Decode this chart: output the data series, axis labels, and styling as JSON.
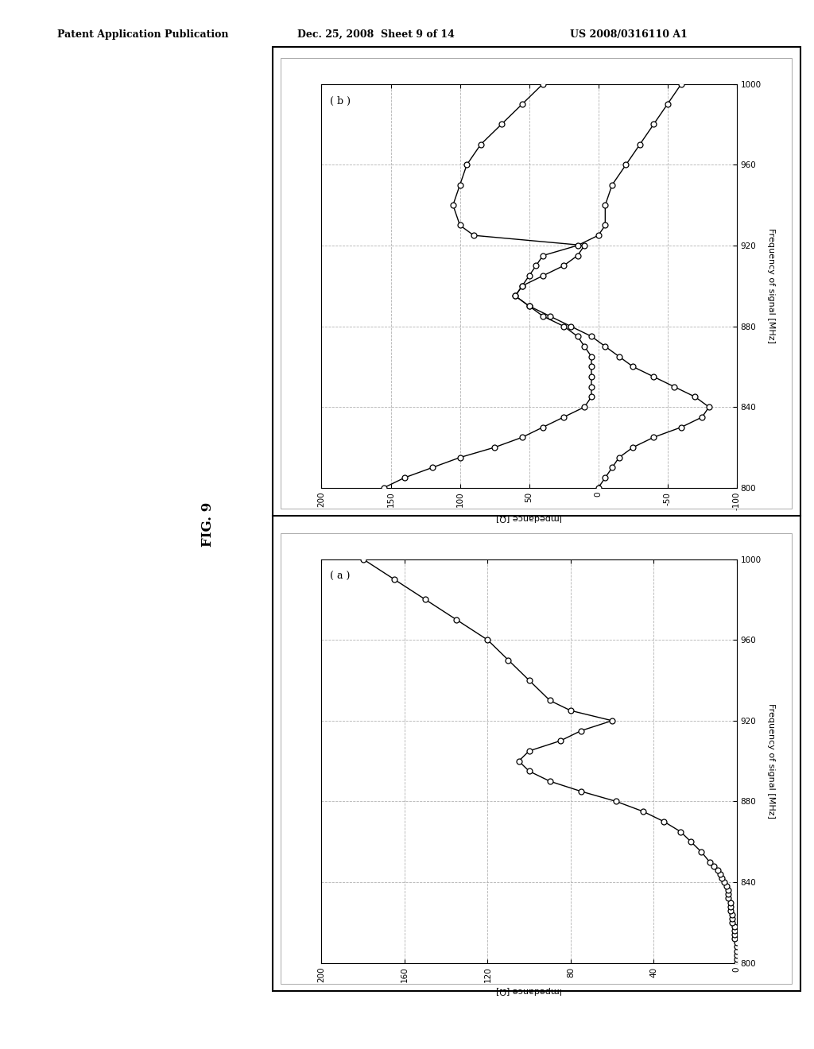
{
  "header_left": "Patent Application Publication",
  "header_mid": "Dec. 25, 2008  Sheet 9 of 14",
  "header_right": "US 2008/0316110 A1",
  "fig_label": "FIG. 9",
  "plot_a_label": "( a )",
  "plot_b_label": "( b )",
  "freq_ticks": [
    800,
    840,
    880,
    920,
    960,
    1000
  ],
  "freq_tick_labels": [
    "800",
    "840",
    "880",
    "920",
    "960",
    "1000"
  ],
  "plot_a_xlim": [
    0,
    200
  ],
  "plot_a_xticks": [
    0,
    40,
    80,
    120,
    160,
    200
  ],
  "plot_a_xtick_labels": [
    "0",
    "40",
    "80",
    "120",
    "160",
    "200"
  ],
  "plot_b_xlim": [
    -100,
    200
  ],
  "plot_b_xticks": [
    -100,
    -50,
    0,
    50,
    100,
    150,
    200
  ],
  "plot_b_xtick_labels": [
    "-100",
    "-50",
    "0",
    "50",
    "100",
    "150",
    "200"
  ],
  "plot_a_freq": [
    800,
    802,
    804,
    806,
    808,
    810,
    812,
    814,
    816,
    818,
    820,
    822,
    824,
    826,
    828,
    830,
    832,
    834,
    836,
    838,
    840,
    842,
    844,
    846,
    848,
    850,
    855,
    860,
    865,
    870,
    875,
    880,
    885,
    890,
    895,
    900,
    905,
    910,
    915,
    920,
    925,
    930,
    940,
    950,
    960,
    970,
    980,
    990,
    1000
  ],
  "plot_a_imp": [
    0,
    0,
    0,
    0,
    0,
    0,
    1,
    1,
    1,
    1,
    2,
    2,
    2,
    3,
    3,
    3,
    4,
    4,
    4,
    5,
    6,
    7,
    8,
    9,
    11,
    13,
    17,
    22,
    27,
    35,
    45,
    58,
    75,
    90,
    100,
    105,
    100,
    85,
    75,
    60,
    80,
    90,
    100,
    110,
    120,
    135,
    150,
    165,
    180
  ],
  "plot_b_freq1": [
    800,
    805,
    810,
    815,
    820,
    825,
    830,
    835,
    840,
    845,
    850,
    855,
    860,
    865,
    870,
    875,
    880,
    885,
    890,
    895,
    900,
    905,
    910,
    915,
    920,
    925,
    930,
    940,
    950,
    960,
    970,
    980,
    990,
    1000
  ],
  "plot_b_imp1": [
    0,
    -5,
    -10,
    -15,
    -25,
    -40,
    -60,
    -75,
    -80,
    -70,
    -55,
    -40,
    -25,
    -15,
    -5,
    5,
    20,
    35,
    50,
    60,
    55,
    40,
    25,
    15,
    10,
    90,
    100,
    105,
    100,
    95,
    85,
    70,
    55,
    40
  ],
  "plot_b_freq2": [
    800,
    805,
    810,
    815,
    820,
    825,
    830,
    835,
    840,
    845,
    850,
    855,
    860,
    865,
    870,
    875,
    880,
    885,
    890,
    895,
    900,
    905,
    910,
    915,
    920,
    925,
    930,
    940,
    950,
    960,
    970,
    980,
    990,
    1000
  ],
  "plot_b_imp2": [
    155,
    140,
    120,
    100,
    75,
    55,
    40,
    25,
    10,
    5,
    5,
    5,
    5,
    5,
    10,
    15,
    25,
    40,
    50,
    60,
    55,
    50,
    45,
    40,
    15,
    0,
    -5,
    -5,
    -10,
    -20,
    -30,
    -40,
    -50,
    -60
  ],
  "bg_color": "#ffffff",
  "line_color": "#000000",
  "marker_color": "#ffffff",
  "marker_edge_color": "#000000",
  "grid_color": "#aaaaaa",
  "grid_style": "--",
  "marker_size": 5,
  "line_width": 1.0
}
